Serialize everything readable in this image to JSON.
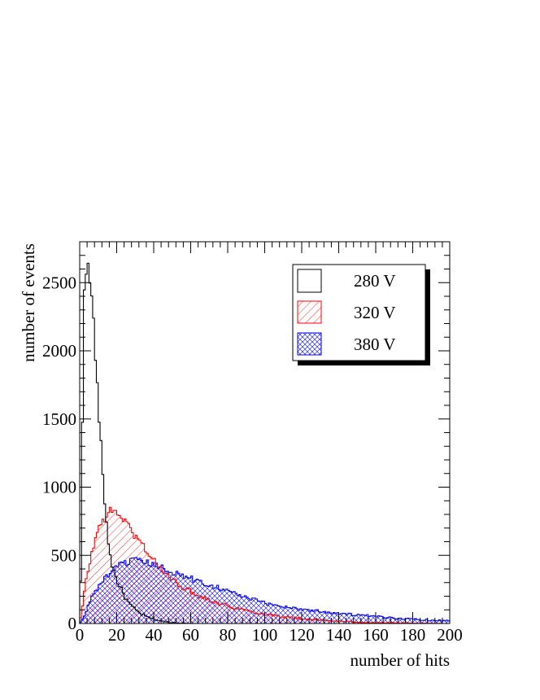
{
  "colors": {
    "black": "#000000",
    "red": "#ff0000",
    "blue": "#0000ff"
  },
  "chart_data": {
    "type": "histogram",
    "title": "",
    "xlabel": "number of hits",
    "ylabel": "number of events",
    "xlim": [
      0,
      200
    ],
    "ylim": [
      0,
      2800
    ],
    "bin_width": 1,
    "x_ticks": [
      0,
      20,
      40,
      60,
      80,
      100,
      120,
      140,
      160,
      180,
      200
    ],
    "y_ticks": [
      0,
      500,
      1000,
      1500,
      2000,
      2500
    ],
    "grid": false,
    "legend": {
      "placement": "top-right",
      "entries": [
        {
          "label": "280 V",
          "fill": "none"
        },
        {
          "label": "320 V",
          "fill": "hatch-diagonal"
        },
        {
          "label": "380 V",
          "fill": "hatch-cross"
        }
      ]
    },
    "series": [
      {
        "legend_label": "280 V",
        "color": "#000000",
        "fill": "none",
        "curve_points": [
          [
            0,
            0
          ],
          [
            1,
            600
          ],
          [
            2,
            2350
          ],
          [
            3,
            2610
          ],
          [
            4,
            2625
          ],
          [
            5,
            2570
          ],
          [
            6,
            2450
          ],
          [
            7,
            2320
          ],
          [
            8,
            2100
          ],
          [
            9,
            1850
          ],
          [
            10,
            1600
          ],
          [
            11,
            1400
          ],
          [
            12,
            1200
          ],
          [
            13,
            1000
          ],
          [
            14,
            800
          ],
          [
            15,
            660
          ],
          [
            16,
            540
          ],
          [
            17,
            460
          ],
          [
            18,
            400
          ],
          [
            20,
            320
          ],
          [
            22,
            260
          ],
          [
            25,
            180
          ],
          [
            28,
            125
          ],
          [
            32,
            80
          ],
          [
            36,
            50
          ],
          [
            40,
            32
          ],
          [
            45,
            15
          ],
          [
            50,
            7
          ],
          [
            55,
            3
          ],
          [
            60,
            1
          ],
          [
            65,
            0
          ],
          [
            200,
            0
          ]
        ]
      },
      {
        "legend_label": "320 V",
        "color": "#ff0000",
        "fill": "hatch-diagonal",
        "curve_points": [
          [
            0,
            0
          ],
          [
            1,
            80
          ],
          [
            2,
            170
          ],
          [
            3,
            280
          ],
          [
            4,
            360
          ],
          [
            5,
            420
          ],
          [
            6,
            480
          ],
          [
            7,
            540
          ],
          [
            8,
            600
          ],
          [
            9,
            650
          ],
          [
            10,
            690
          ],
          [
            12,
            740
          ],
          [
            14,
            790
          ],
          [
            16,
            815
          ],
          [
            18,
            825
          ],
          [
            20,
            820
          ],
          [
            22,
            790
          ],
          [
            24,
            760
          ],
          [
            26,
            720
          ],
          [
            28,
            680
          ],
          [
            30,
            640
          ],
          [
            32,
            610
          ],
          [
            35,
            560
          ],
          [
            38,
            500
          ],
          [
            42,
            430
          ],
          [
            46,
            370
          ],
          [
            50,
            320
          ],
          [
            55,
            275
          ],
          [
            60,
            235
          ],
          [
            65,
            200
          ],
          [
            70,
            175
          ],
          [
            75,
            150
          ],
          [
            80,
            130
          ],
          [
            90,
            95
          ],
          [
            100,
            70
          ],
          [
            110,
            50
          ],
          [
            120,
            35
          ],
          [
            130,
            25
          ],
          [
            140,
            16
          ],
          [
            150,
            10
          ],
          [
            160,
            6
          ],
          [
            170,
            4
          ],
          [
            180,
            2
          ],
          [
            190,
            1
          ],
          [
            200,
            0
          ]
        ]
      },
      {
        "legend_label": "380 V",
        "color": "#0000ff",
        "fill": "hatch-cross",
        "curve_points": [
          [
            0,
            0
          ],
          [
            1,
            20
          ],
          [
            2,
            40
          ],
          [
            3,
            70
          ],
          [
            4,
            110
          ],
          [
            5,
            150
          ],
          [
            6,
            180
          ],
          [
            8,
            230
          ],
          [
            10,
            270
          ],
          [
            12,
            305
          ],
          [
            14,
            340
          ],
          [
            16,
            365
          ],
          [
            18,
            385
          ],
          [
            20,
            410
          ],
          [
            22,
            430
          ],
          [
            24,
            440
          ],
          [
            26,
            450
          ],
          [
            28,
            460
          ],
          [
            30,
            460
          ],
          [
            32,
            455
          ],
          [
            34,
            450
          ],
          [
            36,
            445
          ],
          [
            38,
            440
          ],
          [
            40,
            430
          ],
          [
            45,
            405
          ],
          [
            50,
            380
          ],
          [
            55,
            355
          ],
          [
            60,
            330
          ],
          [
            65,
            305
          ],
          [
            70,
            285
          ],
          [
            75,
            265
          ],
          [
            80,
            240
          ],
          [
            85,
            215
          ],
          [
            90,
            190
          ],
          [
            95,
            170
          ],
          [
            100,
            150
          ],
          [
            110,
            125
          ],
          [
            120,
            105
          ],
          [
            130,
            90
          ],
          [
            140,
            75
          ],
          [
            150,
            62
          ],
          [
            160,
            50
          ],
          [
            170,
            40
          ],
          [
            180,
            32
          ],
          [
            190,
            25
          ],
          [
            200,
            20
          ]
        ]
      }
    ]
  }
}
